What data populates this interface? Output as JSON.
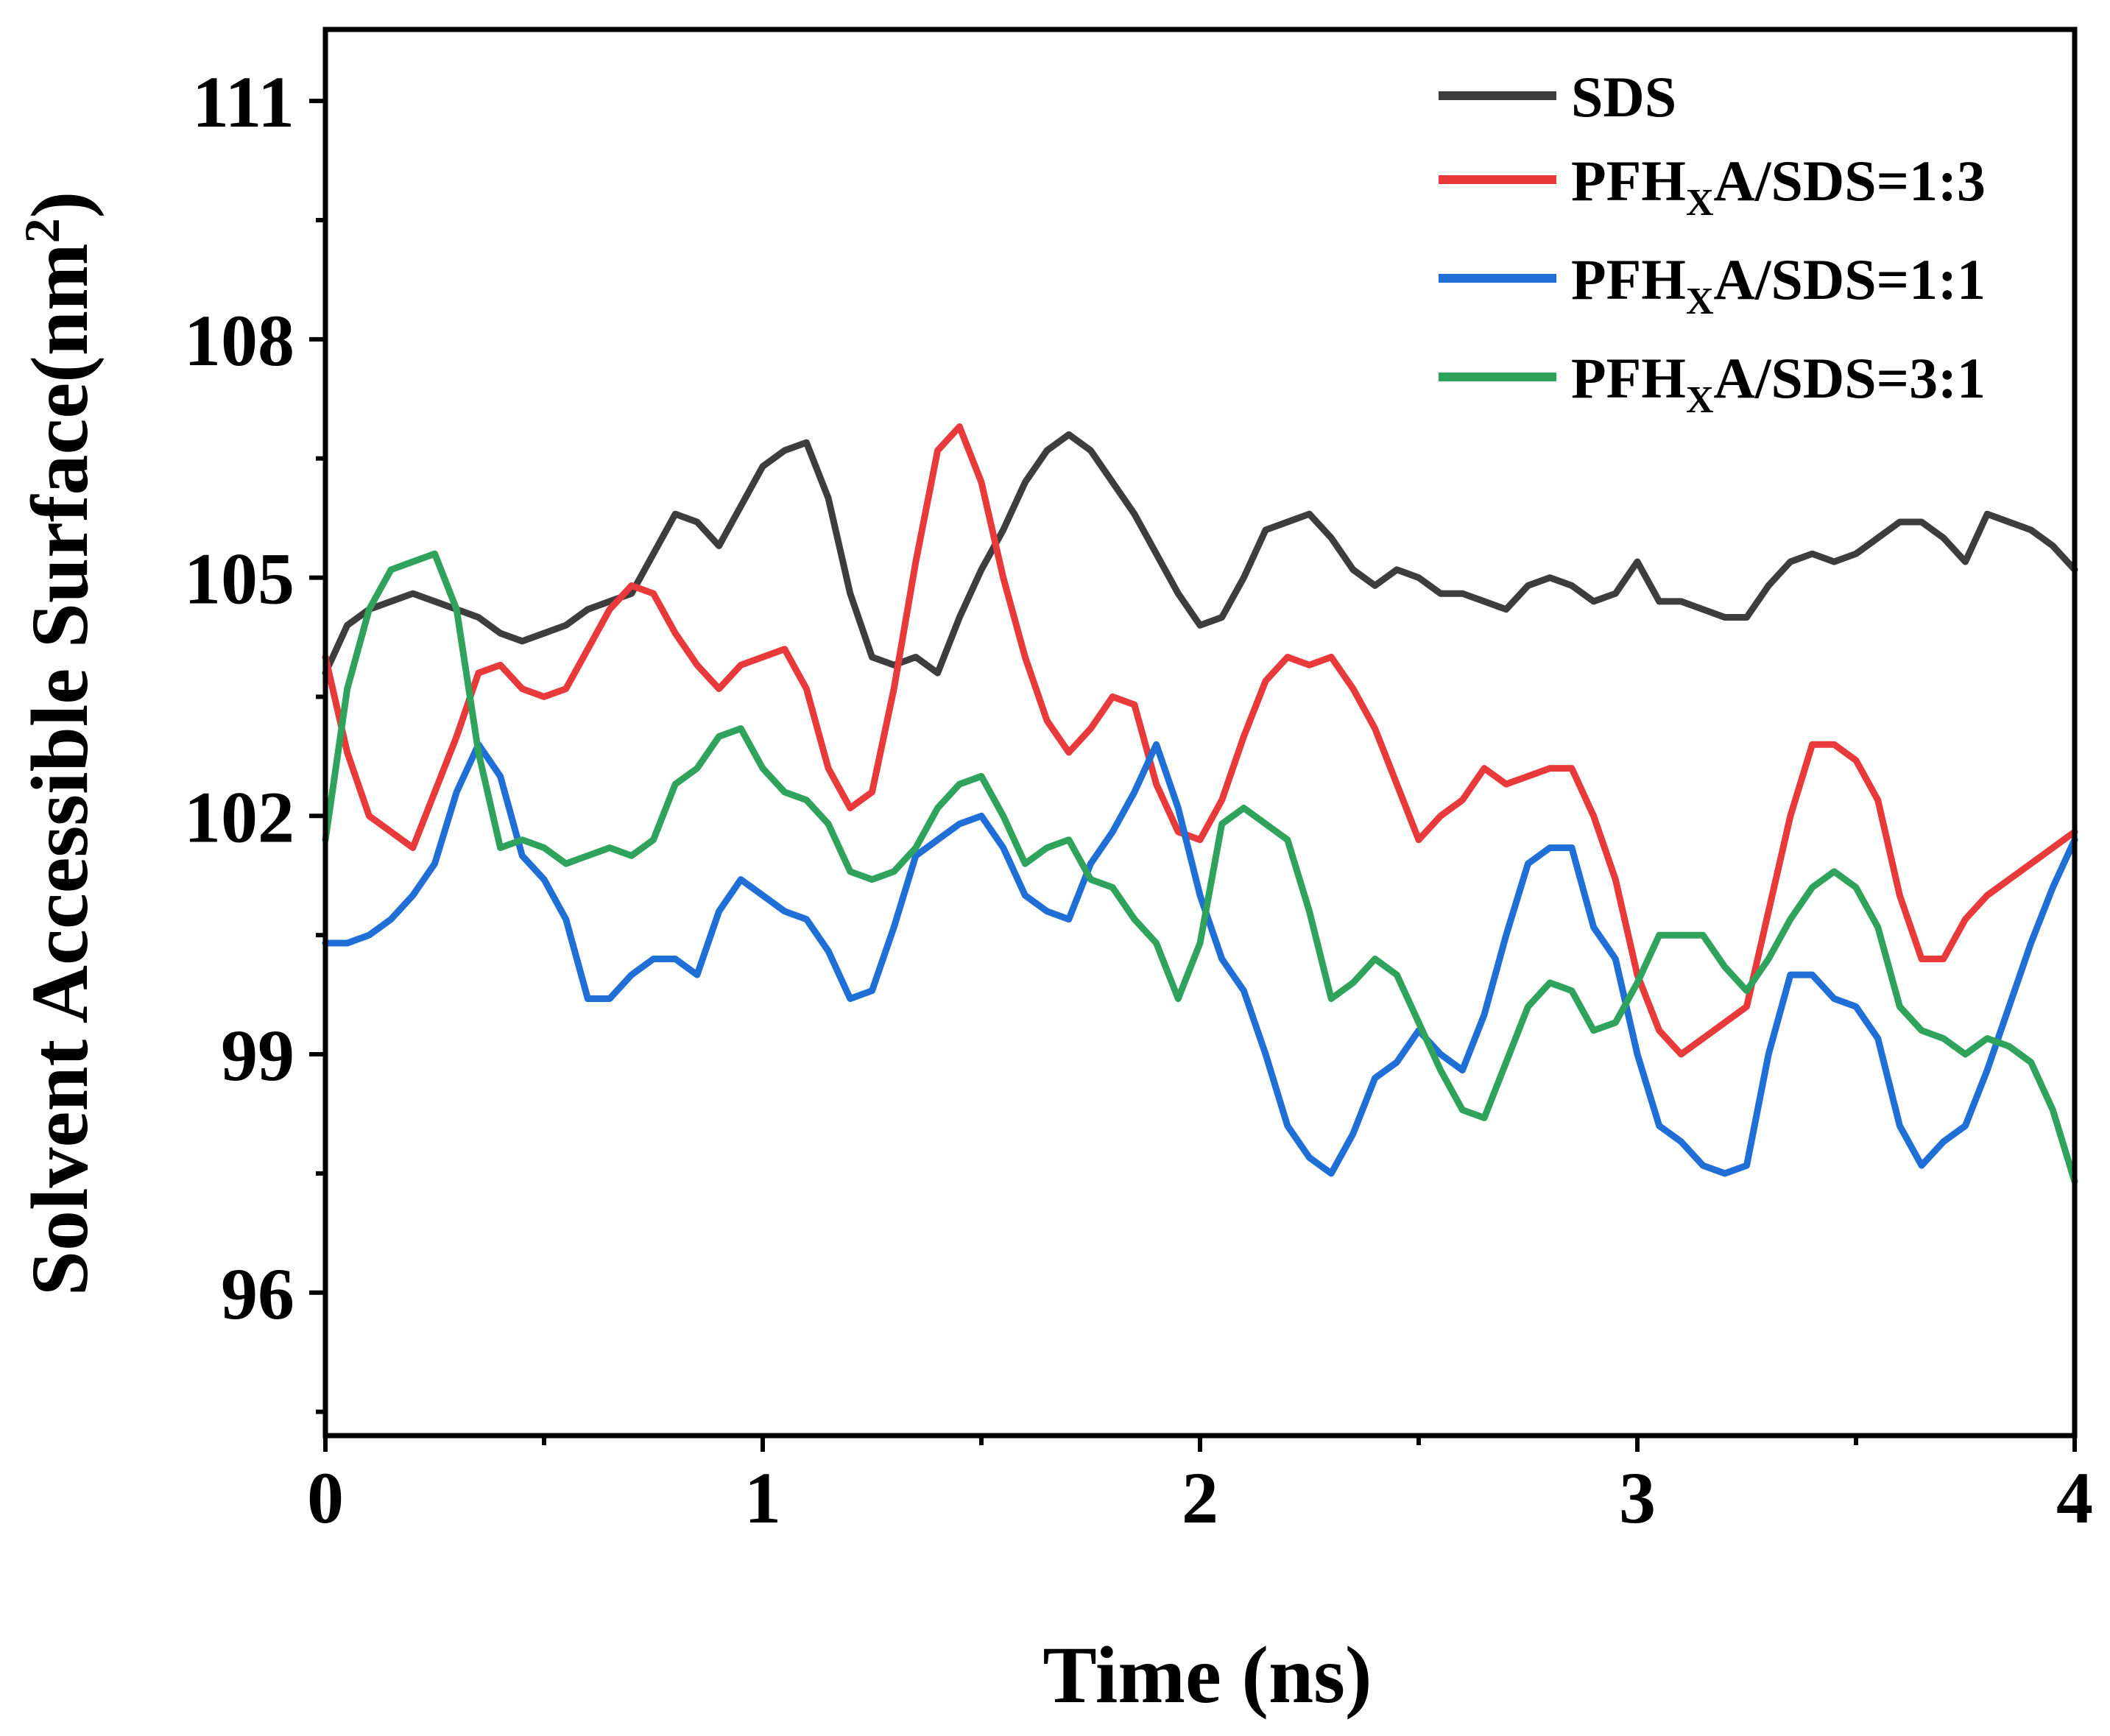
{
  "chart_data": {
    "type": "line",
    "xlabel": "Time (ns)",
    "ylabel_base": "Solvent Accessible Surface(nm",
    "ylabel_sup": "2",
    "ylabel_end": ")",
    "xlim": [
      0,
      4
    ],
    "ylim": [
      94.2,
      111.9
    ],
    "xticks": [
      0,
      1,
      2,
      3,
      4
    ],
    "xtick_labels": [
      "0",
      "1",
      "2",
      "3",
      "4"
    ],
    "x_minor_ticks": [
      0.5,
      1.5,
      2.5,
      3.5
    ],
    "yticks": [
      96,
      99,
      102,
      105,
      108,
      111
    ],
    "ytick_labels": [
      "96",
      "99",
      "102",
      "105",
      "108",
      "111"
    ],
    "y_minor_ticks": [
      94.5,
      97.5,
      100.5,
      103.5,
      106.5,
      109.5
    ],
    "legend_position": "top-right",
    "series": [
      {
        "name": "SDS",
        "label_parts": {
          "pre": "SDS",
          "sub": "",
          "post": ""
        },
        "color": "#3d3d3d",
        "x": [
          0,
          0.05,
          0.1,
          0.15,
          0.2,
          0.25,
          0.3,
          0.35,
          0.4,
          0.45,
          0.5,
          0.55,
          0.6,
          0.65,
          0.7,
          0.75,
          0.8,
          0.85,
          0.9,
          0.95,
          1.0,
          1.05,
          1.1,
          1.15,
          1.2,
          1.25,
          1.3,
          1.35,
          1.4,
          1.45,
          1.5,
          1.55,
          1.6,
          1.65,
          1.7,
          1.75,
          1.8,
          1.85,
          1.9,
          1.95,
          2.0,
          2.05,
          2.1,
          2.15,
          2.2,
          2.25,
          2.3,
          2.35,
          2.4,
          2.45,
          2.5,
          2.55,
          2.6,
          2.65,
          2.7,
          2.75,
          2.8,
          2.85,
          2.9,
          2.95,
          3.0,
          3.05,
          3.1,
          3.15,
          3.2,
          3.25,
          3.3,
          3.35,
          3.4,
          3.45,
          3.5,
          3.55,
          3.6,
          3.65,
          3.7,
          3.75,
          3.8,
          3.85,
          3.9,
          3.95,
          4.0
        ],
        "y": [
          103.8,
          104.4,
          104.6,
          104.7,
          104.8,
          104.7,
          104.6,
          104.5,
          104.3,
          104.2,
          104.3,
          104.4,
          104.6,
          104.7,
          104.8,
          105.3,
          105.8,
          105.7,
          105.4,
          105.9,
          106.4,
          106.6,
          106.7,
          106.0,
          104.8,
          104.0,
          103.9,
          104.0,
          103.8,
          104.5,
          105.1,
          105.6,
          106.2,
          106.6,
          106.8,
          106.6,
          106.2,
          105.8,
          105.3,
          104.8,
          104.4,
          104.5,
          105.0,
          105.6,
          105.7,
          105.8,
          105.5,
          105.1,
          104.9,
          105.1,
          105.0,
          104.8,
          104.8,
          104.7,
          104.6,
          104.9,
          105.0,
          104.9,
          104.7,
          104.8,
          105.2,
          104.7,
          104.7,
          104.6,
          104.5,
          104.5,
          104.9,
          105.2,
          105.3,
          105.2,
          105.3,
          105.5,
          105.7,
          105.7,
          105.5,
          105.2,
          105.8,
          105.7,
          105.6,
          105.4,
          105.1
        ]
      },
      {
        "name": "PFHxA/SDS=1:3",
        "label_parts": {
          "pre": "PFH",
          "sub": "X",
          "post": "A/SDS=1:3"
        },
        "color": "#e83a3a",
        "x": [
          0,
          0.05,
          0.1,
          0.15,
          0.2,
          0.25,
          0.3,
          0.35,
          0.4,
          0.45,
          0.5,
          0.55,
          0.6,
          0.65,
          0.7,
          0.75,
          0.8,
          0.85,
          0.9,
          0.95,
          1.0,
          1.05,
          1.1,
          1.15,
          1.2,
          1.25,
          1.3,
          1.35,
          1.4,
          1.45,
          1.5,
          1.55,
          1.6,
          1.65,
          1.7,
          1.75,
          1.8,
          1.85,
          1.9,
          1.95,
          2.0,
          2.05,
          2.1,
          2.15,
          2.2,
          2.25,
          2.3,
          2.35,
          2.4,
          2.45,
          2.5,
          2.55,
          2.6,
          2.65,
          2.7,
          2.75,
          2.8,
          2.85,
          2.9,
          2.95,
          3.0,
          3.05,
          3.1,
          3.15,
          3.2,
          3.25,
          3.3,
          3.35,
          3.4,
          3.45,
          3.5,
          3.55,
          3.6,
          3.65,
          3.7,
          3.75,
          3.8,
          3.85,
          3.9,
          3.95,
          4.0
        ],
        "y": [
          104.0,
          102.8,
          102.0,
          101.8,
          101.6,
          102.3,
          103.0,
          103.8,
          103.9,
          103.6,
          103.5,
          103.6,
          104.1,
          104.6,
          104.9,
          104.8,
          104.3,
          103.9,
          103.6,
          103.9,
          104.0,
          104.1,
          103.6,
          102.6,
          102.1,
          102.3,
          103.6,
          105.2,
          106.6,
          106.9,
          106.2,
          105.0,
          104.0,
          103.2,
          102.8,
          103.1,
          103.5,
          103.4,
          102.4,
          101.8,
          101.7,
          102.2,
          103.0,
          103.7,
          104.0,
          103.9,
          104.0,
          103.6,
          103.1,
          102.4,
          101.7,
          102.0,
          102.2,
          102.6,
          102.4,
          102.5,
          102.6,
          102.6,
          102.0,
          101.2,
          100.0,
          99.3,
          99.0,
          99.2,
          99.4,
          99.6,
          100.8,
          102.0,
          102.9,
          102.9,
          102.7,
          102.2,
          101.0,
          100.2,
          100.2,
          100.7,
          101.0,
          101.2,
          101.4,
          101.6,
          101.8
        ]
      },
      {
        "name": "PFHxA/SDS=1:1",
        "label_parts": {
          "pre": "PFH",
          "sub": "X",
          "post": "A/SDS=1:1"
        },
        "color": "#1f6fd6",
        "x": [
          0,
          0.05,
          0.1,
          0.15,
          0.2,
          0.25,
          0.3,
          0.35,
          0.4,
          0.45,
          0.5,
          0.55,
          0.6,
          0.65,
          0.7,
          0.75,
          0.8,
          0.85,
          0.9,
          0.95,
          1.0,
          1.05,
          1.1,
          1.15,
          1.2,
          1.25,
          1.3,
          1.35,
          1.4,
          1.45,
          1.5,
          1.55,
          1.6,
          1.65,
          1.7,
          1.75,
          1.8,
          1.85,
          1.9,
          1.95,
          2.0,
          2.05,
          2.1,
          2.15,
          2.2,
          2.25,
          2.3,
          2.35,
          2.4,
          2.45,
          2.5,
          2.55,
          2.6,
          2.65,
          2.7,
          2.75,
          2.8,
          2.85,
          2.9,
          2.95,
          3.0,
          3.05,
          3.1,
          3.15,
          3.2,
          3.25,
          3.3,
          3.35,
          3.4,
          3.45,
          3.5,
          3.55,
          3.6,
          3.65,
          3.7,
          3.75,
          3.8,
          3.85,
          3.9,
          3.95,
          4.0
        ],
        "y": [
          100.4,
          100.4,
          100.5,
          100.7,
          101.0,
          101.4,
          102.3,
          102.9,
          102.5,
          101.5,
          101.2,
          100.7,
          99.7,
          99.7,
          100.0,
          100.2,
          100.2,
          100.0,
          100.8,
          101.2,
          101.0,
          100.8,
          100.7,
          100.3,
          99.7,
          99.8,
          100.6,
          101.5,
          101.7,
          101.9,
          102.0,
          101.6,
          101.0,
          100.8,
          100.7,
          101.4,
          101.8,
          102.3,
          102.9,
          102.1,
          101.0,
          100.2,
          99.8,
          99.0,
          98.1,
          97.7,
          97.5,
          98.0,
          98.7,
          98.9,
          99.3,
          99.0,
          98.8,
          99.5,
          100.5,
          101.4,
          101.6,
          101.6,
          100.6,
          100.2,
          99.0,
          98.1,
          97.9,
          97.6,
          97.5,
          97.6,
          99.0,
          100.0,
          100.0,
          99.7,
          99.6,
          99.2,
          98.1,
          97.6,
          97.9,
          98.1,
          98.8,
          99.6,
          100.4,
          101.1,
          101.7
        ]
      },
      {
        "name": "PFHxA/SDS=3:1",
        "label_parts": {
          "pre": "PFH",
          "sub": "X",
          "post": "A/SDS=3:1"
        },
        "color": "#2fa35b",
        "x": [
          0,
          0.05,
          0.1,
          0.15,
          0.2,
          0.25,
          0.3,
          0.35,
          0.4,
          0.45,
          0.5,
          0.55,
          0.6,
          0.65,
          0.7,
          0.75,
          0.8,
          0.85,
          0.9,
          0.95,
          1.0,
          1.05,
          1.1,
          1.15,
          1.2,
          1.25,
          1.3,
          1.35,
          1.4,
          1.45,
          1.5,
          1.55,
          1.6,
          1.65,
          1.7,
          1.75,
          1.8,
          1.85,
          1.9,
          1.95,
          2.0,
          2.05,
          2.1,
          2.15,
          2.2,
          2.25,
          2.3,
          2.35,
          2.4,
          2.45,
          2.5,
          2.55,
          2.6,
          2.65,
          2.7,
          2.75,
          2.8,
          2.85,
          2.9,
          2.95,
          3.0,
          3.05,
          3.1,
          3.15,
          3.2,
          3.25,
          3.3,
          3.35,
          3.4,
          3.45,
          3.5,
          3.55,
          3.6,
          3.65,
          3.7,
          3.75,
          3.8,
          3.85,
          3.9,
          3.95,
          4.0
        ],
        "y": [
          101.7,
          103.6,
          104.6,
          105.1,
          105.2,
          105.3,
          104.6,
          102.8,
          101.6,
          101.7,
          101.6,
          101.4,
          101.5,
          101.6,
          101.5,
          101.7,
          102.4,
          102.6,
          103.0,
          103.1,
          102.6,
          102.3,
          102.2,
          101.9,
          101.3,
          101.2,
          101.3,
          101.6,
          102.1,
          102.4,
          102.5,
          102.0,
          101.4,
          101.6,
          101.7,
          101.2,
          101.1,
          100.7,
          100.4,
          99.7,
          100.4,
          101.9,
          102.1,
          101.9,
          101.7,
          100.8,
          99.7,
          99.9,
          100.2,
          100.0,
          99.4,
          98.8,
          98.3,
          98.2,
          98.9,
          99.6,
          99.9,
          99.8,
          99.3,
          99.4,
          99.9,
          100.5,
          100.5,
          100.5,
          100.1,
          99.8,
          100.2,
          100.7,
          101.1,
          101.3,
          101.1,
          100.6,
          99.6,
          99.3,
          99.2,
          99.0,
          99.2,
          99.1,
          98.9,
          98.3,
          97.4
        ]
      }
    ]
  }
}
